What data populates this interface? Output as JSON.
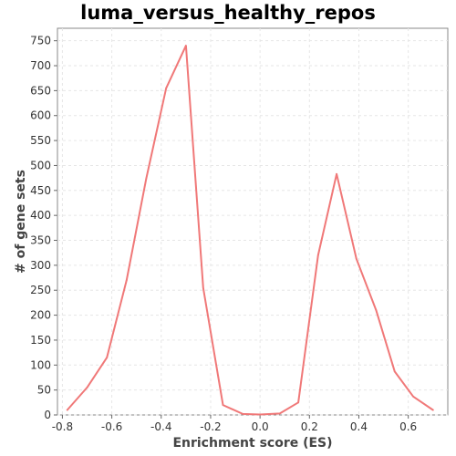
{
  "chart_data": {
    "type": "line",
    "title": "luma_versus_healthy_repos",
    "xlabel": "Enrichment score (ES)",
    "ylabel": "# of gene sets",
    "xlim": [
      -0.82,
      0.76
    ],
    "ylim": [
      0,
      775
    ],
    "xticks": [
      -0.8,
      -0.6,
      -0.4,
      -0.2,
      0.0,
      0.2,
      0.4,
      0.6
    ],
    "xtick_labels": [
      "-0.8",
      "-0.6",
      "-0.4",
      "-0.2",
      "0.0",
      "0.2",
      "0.4",
      "0.6"
    ],
    "yticks": [
      0,
      50,
      100,
      150,
      200,
      250,
      300,
      350,
      400,
      450,
      500,
      550,
      600,
      650,
      700,
      750
    ],
    "ytick_labels": [
      "0",
      "50",
      "100",
      "150",
      "200",
      "250",
      "300",
      "350",
      "400",
      "450",
      "500",
      "550",
      "600",
      "650",
      "700",
      "750"
    ],
    "grid": true,
    "legend": "none",
    "series": [
      {
        "color": "#f07878",
        "x": [
          -0.78,
          -0.7,
          -0.62,
          -0.54,
          -0.46,
          -0.38,
          -0.3,
          -0.23,
          -0.15,
          -0.07,
          0.0,
          0.08,
          0.155,
          0.235,
          0.31,
          0.39,
          0.47,
          0.545,
          0.62,
          0.7
        ],
        "y": [
          10,
          55,
          115,
          270,
          475,
          655,
          740,
          255,
          20,
          2,
          1,
          3,
          25,
          320,
          483,
          313,
          210,
          87,
          37,
          10
        ]
      }
    ]
  }
}
